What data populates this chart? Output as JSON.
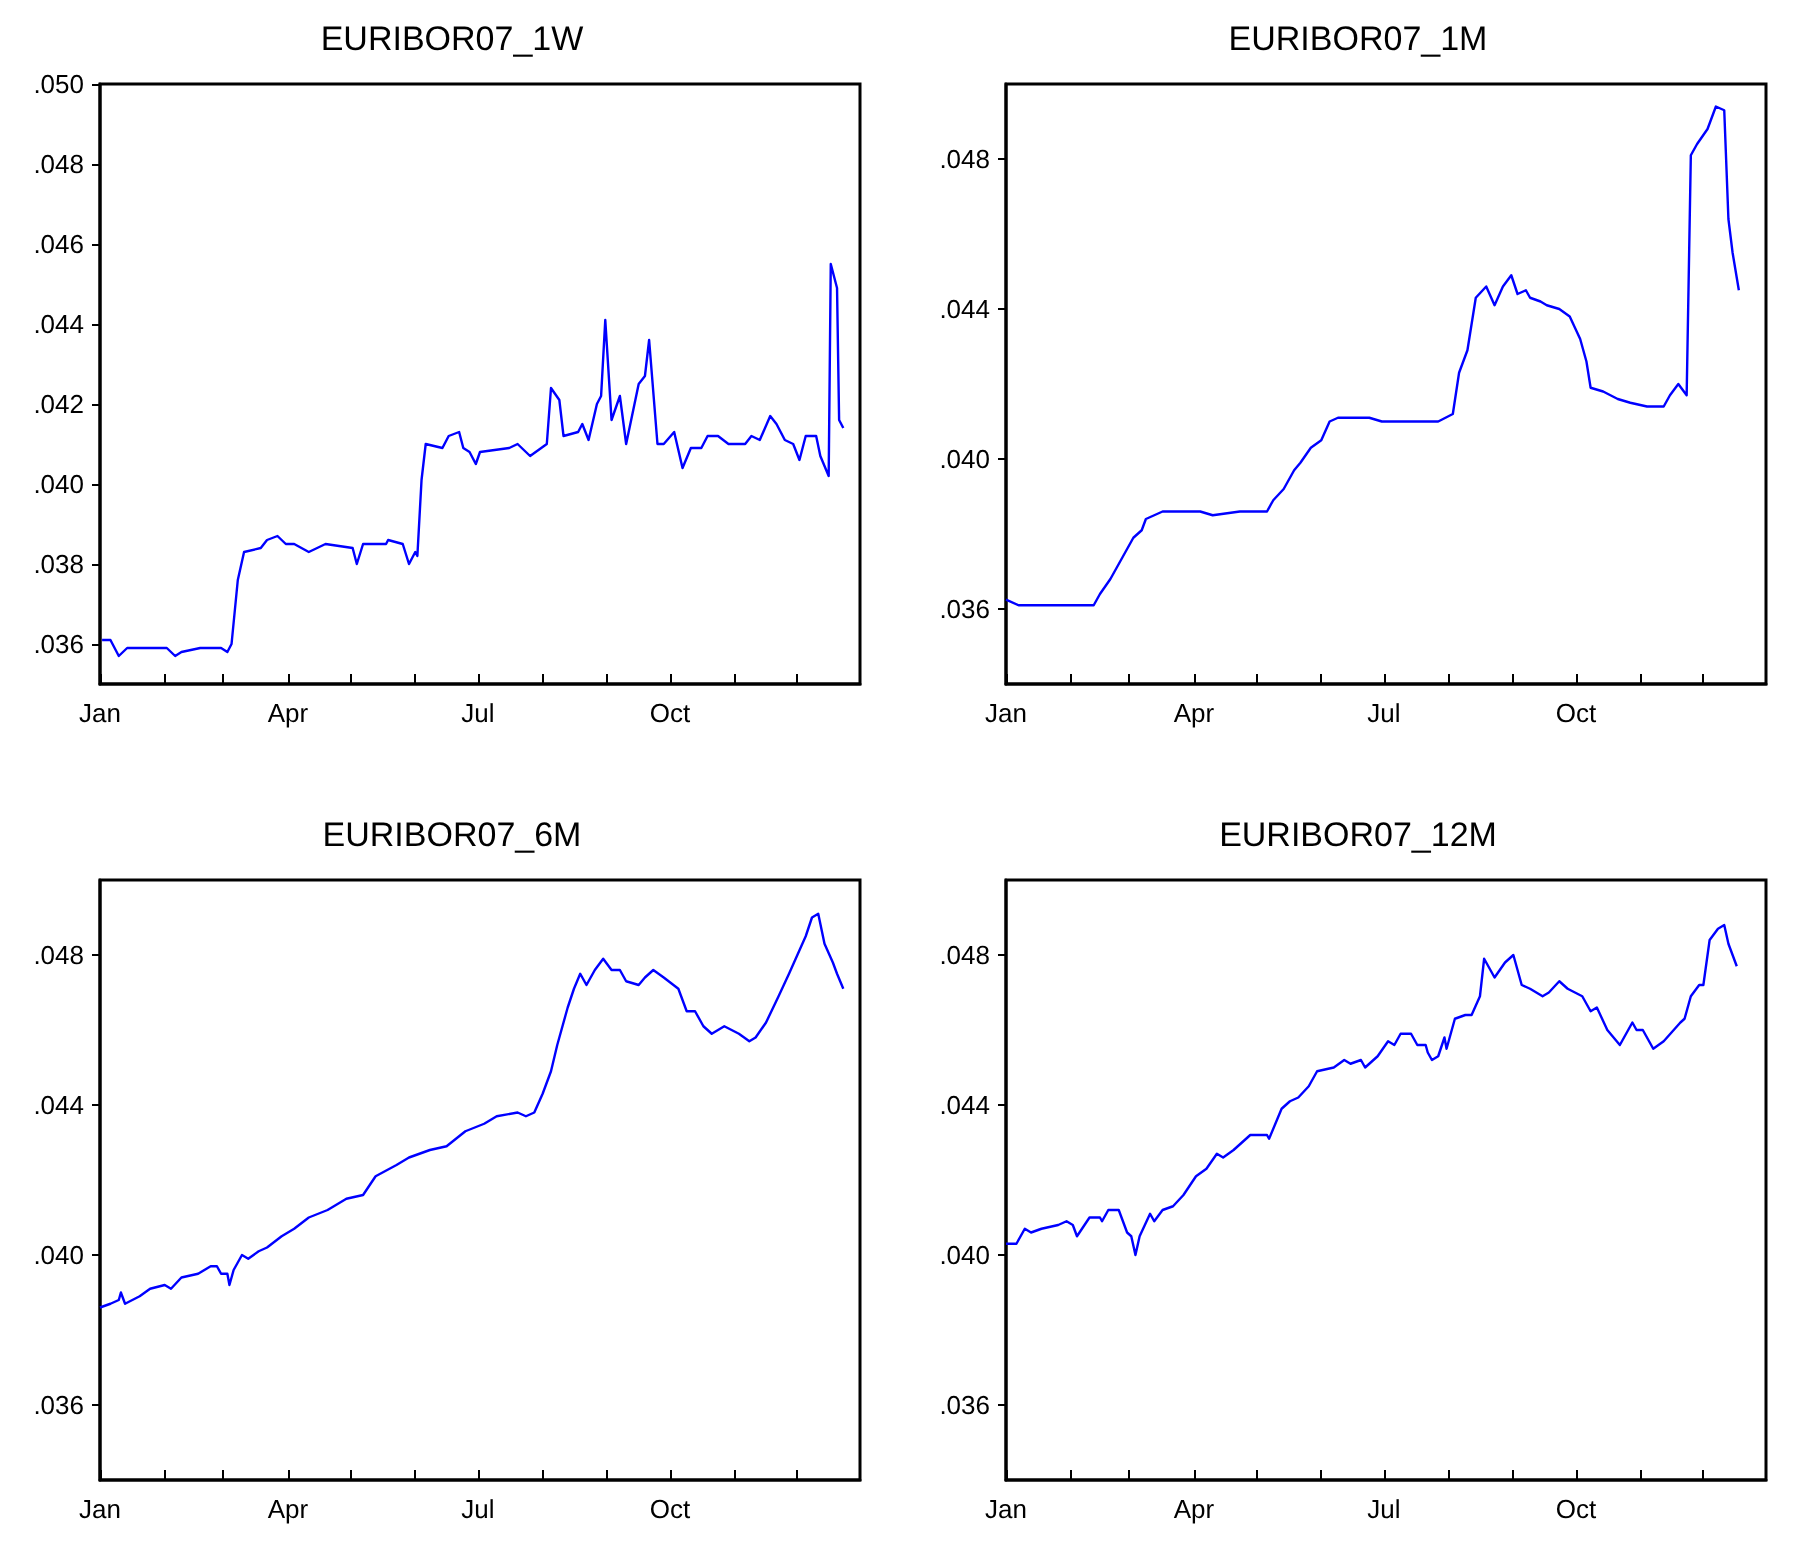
{
  "chart_data": [
    {
      "type": "line",
      "title": "EURIBOR07_1W",
      "color": "#0000ff",
      "x": [
        "--01-02",
        "--01-06",
        "--01-10",
        "--01-14",
        "--01-27",
        "--02-02",
        "--02-06",
        "--02-09",
        "--02-18",
        "--02-28",
        "--03-03",
        "--03-05",
        "--03-08",
        "--03-11",
        "--03-19",
        "--03-22",
        "--03-27",
        "--03-31",
        "--04-04",
        "--04-11",
        "--04-19",
        "--05-02",
        "--05-04",
        "--05-07",
        "--05-18",
        "--05-19",
        "--05-26",
        "--05-29",
        "--06-01",
        "--06-02",
        "--06-04",
        "--06-06",
        "--06-14",
        "--06-17",
        "--06-22",
        "--06-24",
        "--06-27",
        "--06-30",
        "--07-02",
        "--07-16",
        "--07-20",
        "--07-26",
        "--08-03",
        "--08-05",
        "--08-09",
        "--08-11",
        "--08-18",
        "--08-20",
        "--08-23",
        "--08-27",
        "--08-29",
        "--08-31",
        "--09-03",
        "--09-07",
        "--09-10",
        "--09-16",
        "--09-19",
        "--09-21",
        "--09-25",
        "--09-28",
        "--10-03",
        "--10-07",
        "--10-11",
        "--10-16",
        "--10-19",
        "--10-24",
        "--10-29",
        "--11-06",
        "--11-09",
        "--11-13",
        "--11-18",
        "--11-21",
        "--11-25",
        "--11-29",
        "--12-02",
        "--12-05",
        "--12-10",
        "--12-12",
        "--12-16",
        "--12-17",
        "--12-20",
        "--12-21",
        "--12-23"
      ],
      "values": [
        0.0361,
        0.0361,
        0.0357,
        0.0359,
        0.0359,
        0.0359,
        0.0357,
        0.0358,
        0.0359,
        0.0359,
        0.0358,
        0.036,
        0.0376,
        0.0383,
        0.0384,
        0.0386,
        0.0387,
        0.0385,
        0.0385,
        0.0383,
        0.0385,
        0.0384,
        0.038,
        0.0385,
        0.0385,
        0.0386,
        0.0385,
        0.038,
        0.0383,
        0.0382,
        0.0401,
        0.041,
        0.0409,
        0.0412,
        0.0413,
        0.0409,
        0.0408,
        0.0405,
        0.0408,
        0.0409,
        0.041,
        0.0407,
        0.041,
        0.0424,
        0.0421,
        0.0412,
        0.0413,
        0.0415,
        0.0411,
        0.042,
        0.0422,
        0.0441,
        0.0416,
        0.0422,
        0.041,
        0.0425,
        0.0427,
        0.0436,
        0.041,
        0.041,
        0.0413,
        0.0404,
        0.0409,
        0.0409,
        0.0412,
        0.0412,
        0.041,
        0.041,
        0.0412,
        0.0411,
        0.0417,
        0.0415,
        0.0411,
        0.041,
        0.0406,
        0.0412,
        0.0412,
        0.0407,
        0.0402,
        0.0455,
        0.0449,
        0.0416,
        0.0414
      ],
      "xlim": [
        "--01-01",
        "--12-31"
      ],
      "xticks": [
        {
          "value": "--01-01",
          "label": "Jan"
        },
        {
          "value": "--02-01",
          "label": null
        },
        {
          "value": "--03-01",
          "label": null
        },
        {
          "value": "--04-01",
          "label": "Apr"
        },
        {
          "value": "--05-01",
          "label": null
        },
        {
          "value": "--06-01",
          "label": null
        },
        {
          "value": "--07-01",
          "label": "Jul"
        },
        {
          "value": "--08-01",
          "label": null
        },
        {
          "value": "--09-01",
          "label": null
        },
        {
          "value": "--10-01",
          "label": "Oct"
        },
        {
          "value": "--11-01",
          "label": null
        },
        {
          "value": "--12-01",
          "label": null
        }
      ],
      "ylim": [
        0.035,
        0.05
      ],
      "yticks": [
        {
          "value": 0.036,
          "label": ".036"
        },
        {
          "value": 0.038,
          "label": ".038"
        },
        {
          "value": 0.04,
          "label": ".040"
        },
        {
          "value": 0.042,
          "label": ".042"
        },
        {
          "value": 0.044,
          "label": ".044"
        },
        {
          "value": 0.046,
          "label": ".046"
        },
        {
          "value": 0.048,
          "label": ".048"
        },
        {
          "value": 0.05,
          "label": ".050"
        }
      ]
    },
    {
      "type": "line",
      "title": "EURIBOR07_1M",
      "color": "#0000ff",
      "x": [
        "--01-01",
        "--01-07",
        "--01-14",
        "--01-30",
        "--02-05",
        "--02-12",
        "--02-15",
        "--02-20",
        "--02-26",
        "--03-03",
        "--03-07",
        "--03-09",
        "--03-13",
        "--03-17",
        "--04-04",
        "--04-10",
        "--04-23",
        "--05-06",
        "--05-09",
        "--05-14",
        "--05-19",
        "--05-22",
        "--05-27",
        "--06-01",
        "--06-05",
        "--06-09",
        "--06-24",
        "--06-30",
        "--07-16",
        "--07-27",
        "--08-03",
        "--08-06",
        "--08-10",
        "--08-14",
        "--08-19",
        "--08-23",
        "--08-27",
        "--08-31",
        "--09-03",
        "--09-07",
        "--09-09",
        "--09-14",
        "--09-17",
        "--09-23",
        "--09-28",
        "--10-03",
        "--10-06",
        "--10-08",
        "--10-14",
        "--10-21",
        "--10-27",
        "--11-04",
        "--11-12",
        "--11-15",
        "--11-19",
        "--11-23",
        "--11-25",
        "--11-28",
        "--12-03",
        "--12-07",
        "--12-11",
        "--12-13",
        "--12-15",
        "--12-18"
      ],
      "values": [
        0.03625,
        0.0361,
        0.0361,
        0.0361,
        0.0361,
        0.0361,
        0.0364,
        0.0368,
        0.0374,
        0.0379,
        0.0381,
        0.0384,
        0.0385,
        0.0386,
        0.0386,
        0.0385,
        0.0386,
        0.0386,
        0.0389,
        0.0392,
        0.0397,
        0.0399,
        0.0403,
        0.0405,
        0.041,
        0.0411,
        0.0411,
        0.041,
        0.041,
        0.041,
        0.0412,
        0.0423,
        0.0429,
        0.0443,
        0.0446,
        0.0441,
        0.0446,
        0.0449,
        0.0444,
        0.0445,
        0.0443,
        0.0442,
        0.0441,
        0.044,
        0.0438,
        0.0432,
        0.0426,
        0.0419,
        0.0418,
        0.0416,
        0.0415,
        0.0414,
        0.0414,
        0.0417,
        0.042,
        0.0417,
        0.0481,
        0.0484,
        0.0488,
        0.0494,
        0.0493,
        0.0464,
        0.0455,
        0.0445
      ],
      "xlim": [
        "--01-01",
        "--12-31"
      ],
      "xticks": [
        {
          "value": "--01-01",
          "label": "Jan"
        },
        {
          "value": "--02-01",
          "label": null
        },
        {
          "value": "--03-01",
          "label": null
        },
        {
          "value": "--04-01",
          "label": "Apr"
        },
        {
          "value": "--05-01",
          "label": null
        },
        {
          "value": "--06-01",
          "label": null
        },
        {
          "value": "--07-01",
          "label": "Jul"
        },
        {
          "value": "--08-01",
          "label": null
        },
        {
          "value": "--09-01",
          "label": null
        },
        {
          "value": "--10-01",
          "label": "Oct"
        },
        {
          "value": "--11-01",
          "label": null
        },
        {
          "value": "--12-01",
          "label": null
        }
      ],
      "ylim": [
        0.034,
        0.05
      ],
      "yticks": [
        {
          "value": 0.036,
          "label": ".036"
        },
        {
          "value": 0.04,
          "label": ".040"
        },
        {
          "value": 0.044,
          "label": ".044"
        },
        {
          "value": 0.048,
          "label": ".048"
        }
      ]
    },
    {
      "type": "line",
      "title": "EURIBOR07_6M",
      "color": "#0000ff",
      "x": [
        "--01-01",
        "--01-06",
        "--01-10",
        "--01-11",
        "--01-13",
        "--01-20",
        "--01-25",
        "--02-01",
        "--02-04",
        "--02-09",
        "--02-17",
        "--02-23",
        "--02-26",
        "--02-28",
        "--03-03",
        "--03-04",
        "--03-06",
        "--03-10",
        "--03-13",
        "--03-18",
        "--03-22",
        "--03-29",
        "--04-04",
        "--04-11",
        "--04-20",
        "--04-29",
        "--05-07",
        "--05-13",
        "--05-23",
        "--05-29",
        "--06-08",
        "--06-16",
        "--06-25",
        "--07-04",
        "--07-10",
        "--07-20",
        "--07-24",
        "--07-28",
        "--08-01",
        "--08-05",
        "--08-08",
        "--08-13",
        "--08-16",
        "--08-19",
        "--08-22",
        "--08-26",
        "--08-30",
        "--09-03",
        "--09-07",
        "--09-10",
        "--09-16",
        "--09-19",
        "--09-23",
        "--09-28",
        "--10-05",
        "--10-09",
        "--10-13",
        "--10-17",
        "--10-21",
        "--10-27",
        "--11-03",
        "--11-08",
        "--11-11",
        "--11-16",
        "--11-22",
        "--11-27",
        "--12-01",
        "--12-05",
        "--12-08",
        "--12-11",
        "--12-14",
        "--12-18",
        "--12-20",
        "--12-23"
      ],
      "values": [
        0.0386,
        0.0387,
        0.0388,
        0.039,
        0.0387,
        0.0389,
        0.0391,
        0.0392,
        0.0391,
        0.0394,
        0.0395,
        0.0397,
        0.0397,
        0.0395,
        0.0395,
        0.0392,
        0.0396,
        0.04,
        0.0399,
        0.0401,
        0.0402,
        0.0405,
        0.0407,
        0.041,
        0.0412,
        0.0415,
        0.0416,
        0.0421,
        0.0424,
        0.0426,
        0.0428,
        0.0429,
        0.0433,
        0.0435,
        0.0437,
        0.0438,
        0.0437,
        0.0438,
        0.0443,
        0.0449,
        0.0456,
        0.0466,
        0.0471,
        0.0475,
        0.0472,
        0.0476,
        0.0479,
        0.0476,
        0.0476,
        0.0473,
        0.0472,
        0.0474,
        0.0476,
        0.0474,
        0.0471,
        0.0465,
        0.0465,
        0.0461,
        0.0459,
        0.0461,
        0.0459,
        0.0457,
        0.0458,
        0.0462,
        0.0469,
        0.0475,
        0.048,
        0.0485,
        0.049,
        0.0491,
        0.0483,
        0.0478,
        0.0475,
        0.0471
      ],
      "xlim": [
        "--01-01",
        "--12-31"
      ],
      "xticks": [
        {
          "value": "--01-01",
          "label": "Jan"
        },
        {
          "value": "--02-01",
          "label": null
        },
        {
          "value": "--03-01",
          "label": null
        },
        {
          "value": "--04-01",
          "label": "Apr"
        },
        {
          "value": "--05-01",
          "label": null
        },
        {
          "value": "--06-01",
          "label": null
        },
        {
          "value": "--07-01",
          "label": "Jul"
        },
        {
          "value": "--08-01",
          "label": null
        },
        {
          "value": "--09-01",
          "label": null
        },
        {
          "value": "--10-01",
          "label": "Oct"
        },
        {
          "value": "--11-01",
          "label": null
        },
        {
          "value": "--12-01",
          "label": null
        }
      ],
      "ylim": [
        0.034,
        0.05
      ],
      "yticks": [
        {
          "value": 0.036,
          "label": ".036"
        },
        {
          "value": 0.04,
          "label": ".040"
        },
        {
          "value": 0.044,
          "label": ".044"
        },
        {
          "value": 0.048,
          "label": ".048"
        }
      ]
    },
    {
      "type": "line",
      "title": "EURIBOR07_12M",
      "color": "#0000ff",
      "x": [
        "--01-01",
        "--01-06",
        "--01-10",
        "--01-13",
        "--01-18",
        "--01-26",
        "--01-30",
        "--02-02",
        "--02-04",
        "--02-10",
        "--02-15",
        "--02-16",
        "--02-19",
        "--02-24",
        "--02-28",
        "--03-02",
        "--03-04",
        "--03-06",
        "--03-11",
        "--03-13",
        "--03-17",
        "--03-22",
        "--03-27",
        "--04-02",
        "--04-07",
        "--04-12",
        "--04-15",
        "--04-20",
        "--04-28",
        "--05-06",
        "--05-07",
        "--05-13",
        "--05-17",
        "--05-21",
        "--05-26",
        "--05-30",
        "--06-07",
        "--06-12",
        "--06-15",
        "--06-20",
        "--06-22",
        "--06-28",
        "--07-03",
        "--07-06",
        "--07-09",
        "--07-14",
        "--07-17",
        "--07-21",
        "--07-22",
        "--07-24",
        "--07-27",
        "--07-30",
        "--07-31",
        "--08-04",
        "--08-09",
        "--08-12",
        "--08-16",
        "--08-18",
        "--08-23",
        "--08-28",
        "--09-01",
        "--09-05",
        "--09-09",
        "--09-15",
        "--09-18",
        "--09-23",
        "--09-27",
        "--10-04",
        "--10-08",
        "--10-11",
        "--10-16",
        "--10-22",
        "--10-25",
        "--10-28",
        "--10-30",
        "--11-02",
        "--11-07",
        "--11-12",
        "--11-20",
        "--11-22",
        "--11-25",
        "--11-29",
        "--12-01",
        "--12-04",
        "--12-08",
        "--12-11",
        "--12-13",
        "--12-17"
      ],
      "values": [
        0.0403,
        0.0403,
        0.0407,
        0.0406,
        0.0407,
        0.0408,
        0.0409,
        0.0408,
        0.0405,
        0.041,
        0.041,
        0.0409,
        0.0412,
        0.0412,
        0.0406,
        0.0405,
        0.04,
        0.0405,
        0.0411,
        0.0409,
        0.0412,
        0.0413,
        0.0416,
        0.0421,
        0.0423,
        0.0427,
        0.0426,
        0.0428,
        0.0432,
        0.0432,
        0.0431,
        0.0439,
        0.0441,
        0.0442,
        0.0445,
        0.0449,
        0.045,
        0.0452,
        0.0451,
        0.0452,
        0.045,
        0.0453,
        0.0457,
        0.0456,
        0.0459,
        0.0459,
        0.0456,
        0.0456,
        0.0454,
        0.0452,
        0.0453,
        0.0458,
        0.0455,
        0.0463,
        0.0464,
        0.0464,
        0.0469,
        0.0479,
        0.0474,
        0.0478,
        0.048,
        0.0472,
        0.0471,
        0.0469,
        0.047,
        0.0473,
        0.0471,
        0.0469,
        0.0465,
        0.0466,
        0.046,
        0.0456,
        0.0459,
        0.0462,
        0.046,
        0.046,
        0.0455,
        0.0457,
        0.0462,
        0.0463,
        0.0469,
        0.0472,
        0.0472,
        0.0484,
        0.0487,
        0.0488,
        0.0483,
        0.0477
      ],
      "xlim": [
        "--01-01",
        "--12-31"
      ],
      "xticks": [
        {
          "value": "--01-01",
          "label": "Jan"
        },
        {
          "value": "--02-01",
          "label": null
        },
        {
          "value": "--03-01",
          "label": null
        },
        {
          "value": "--04-01",
          "label": "Apr"
        },
        {
          "value": "--05-01",
          "label": null
        },
        {
          "value": "--06-01",
          "label": null
        },
        {
          "value": "--07-01",
          "label": "Jul"
        },
        {
          "value": "--08-01",
          "label": null
        },
        {
          "value": "--09-01",
          "label": null
        },
        {
          "value": "--10-01",
          "label": "Oct"
        },
        {
          "value": "--11-01",
          "label": null
        },
        {
          "value": "--12-01",
          "label": null
        }
      ],
      "ylim": [
        0.034,
        0.05
      ],
      "yticks": [
        {
          "value": 0.036,
          "label": ".036"
        },
        {
          "value": 0.04,
          "label": ".040"
        },
        {
          "value": 0.044,
          "label": ".044"
        },
        {
          "value": 0.048,
          "label": ".048"
        }
      ]
    }
  ]
}
